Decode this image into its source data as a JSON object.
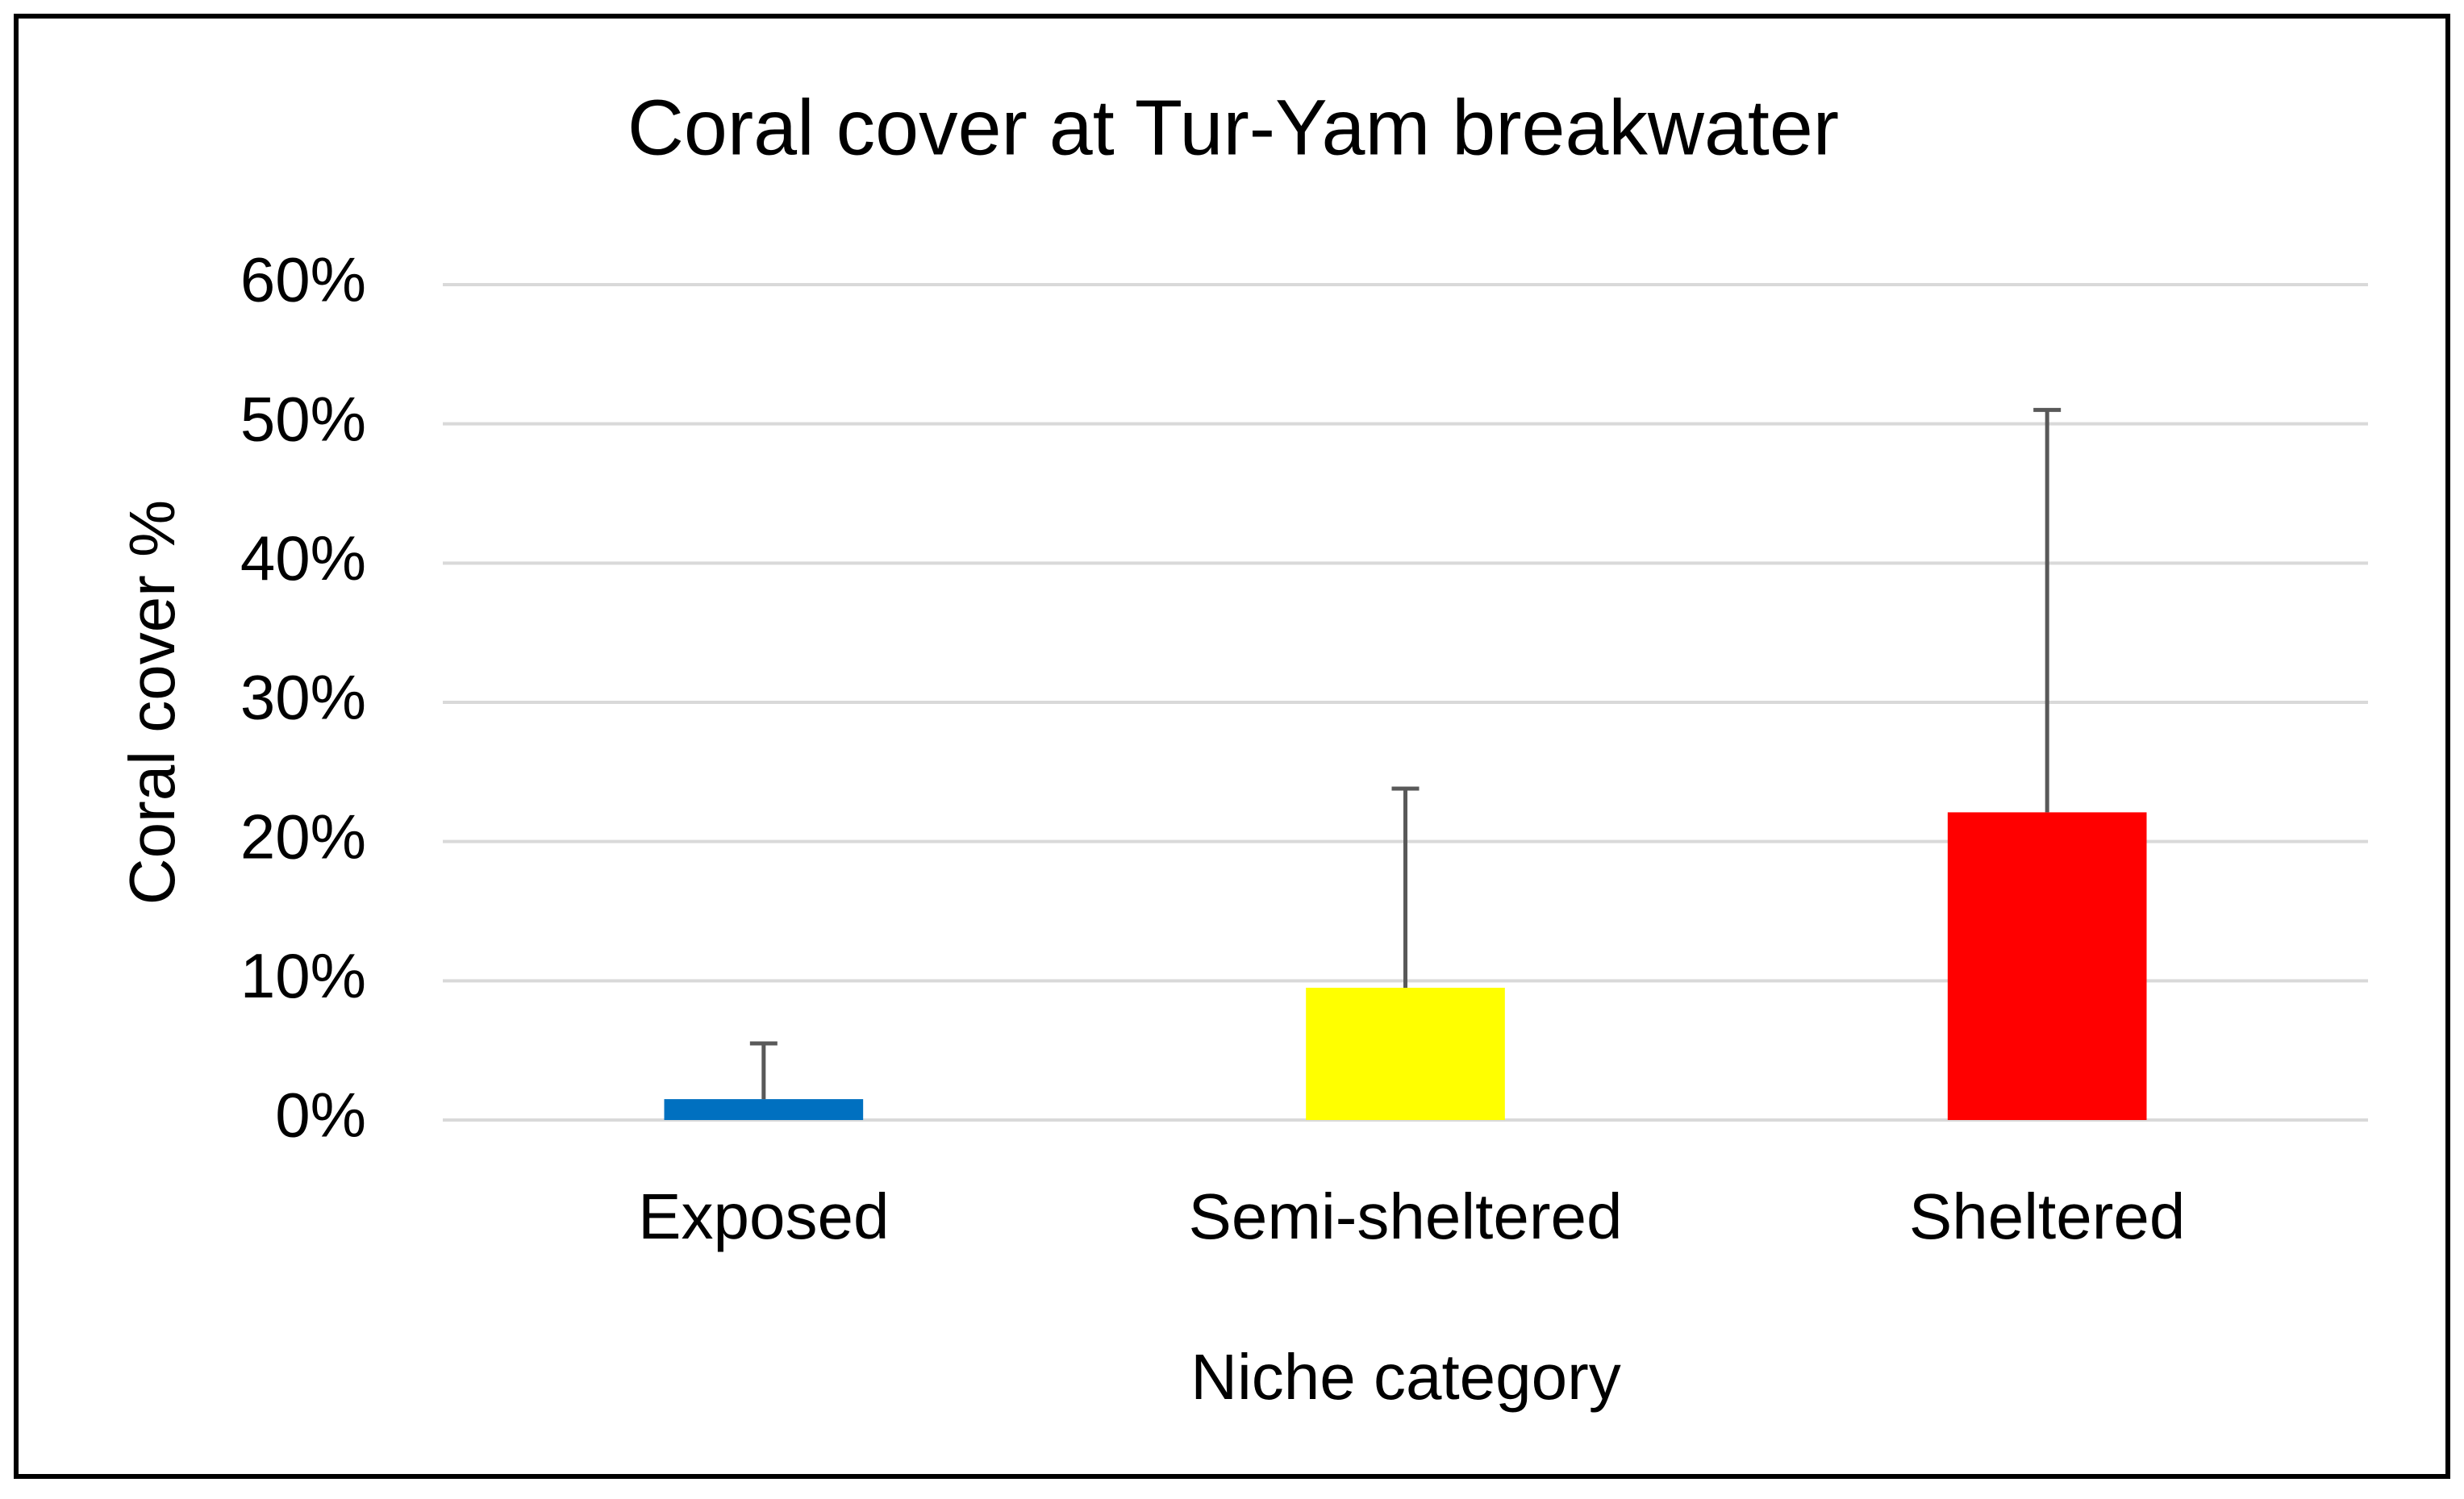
{
  "chart_data": {
    "type": "bar",
    "title": "Coral cover at Tur-Yam breakwater",
    "x_label": "Niche category",
    "y_label": "Coral cover %",
    "categories": [
      "Exposed",
      "Semi-sheltered",
      "Sheltered"
    ],
    "values": [
      1.5,
      9.5,
      22.1
    ],
    "errors": [
      4,
      14.3,
      28.9
    ],
    "colors": [
      "#0070c0",
      "#ffff00",
      "#ff0000"
    ],
    "error_color": "#595959",
    "ylim": [
      0,
      60
    ],
    "yticks": [
      {
        "value": 0,
        "label": "0%"
      },
      {
        "value": 10,
        "label": "10%"
      },
      {
        "value": 20,
        "label": "20%"
      },
      {
        "value": 30,
        "label": "30%"
      },
      {
        "value": 40,
        "label": "40%"
      },
      {
        "value": 50,
        "label": "50%"
      },
      {
        "value": 60,
        "label": "60%"
      }
    ],
    "grid": true
  }
}
